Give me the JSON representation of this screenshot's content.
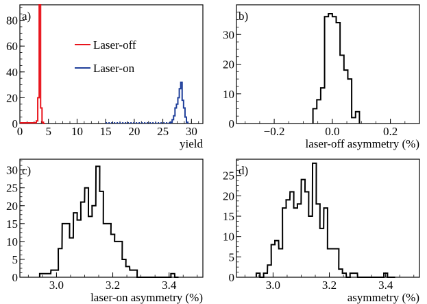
{
  "colors": {
    "laser_off": "#e8141c",
    "laser_on": "#1f3f9a",
    "plain": "#000000"
  },
  "chart_data": [
    {
      "panel": "a)",
      "type": "histogram",
      "xlabel": "yield",
      "ylabel": "",
      "xlim": [
        0,
        32
      ],
      "ylim": [
        0,
        92
      ],
      "xticks": [
        0,
        5,
        10,
        15,
        20,
        25,
        30
      ],
      "xtick_labels": [
        "0",
        "5",
        "10",
        "15",
        "20",
        "25",
        "30"
      ],
      "yticks": [
        0,
        20,
        40,
        60,
        80
      ],
      "ytick_labels": [
        "0",
        "20",
        "40",
        "60",
        "80"
      ],
      "legend": {
        "placement": "top-center",
        "entries": [
          "Laser-off",
          "Laser-on"
        ]
      },
      "series": [
        {
          "name": "Laser-off",
          "color_key": "laser_off",
          "bin_width": 0.25,
          "x": [
            3.0,
            3.25,
            3.5,
            3.75,
            4.0,
            4.25
          ],
          "values": [
            2,
            20,
            92,
            12,
            1,
            0
          ]
        },
        {
          "name": "Laser-on",
          "color_key": "laser_on",
          "bin_width": 0.25,
          "x": [
            26.5,
            26.75,
            27.0,
            27.25,
            27.5,
            27.75,
            28.0,
            28.25,
            28.5,
            28.75,
            29.0,
            29.25
          ],
          "values": [
            1,
            3,
            6,
            12,
            15,
            20,
            27,
            32,
            18,
            12,
            5,
            1
          ]
        }
      ]
    },
    {
      "panel": "b)",
      "type": "histogram",
      "xlabel": "laser-off asymmetry  (%)",
      "ylabel": "",
      "xlim": [
        -0.33,
        0.3
      ],
      "ylim": [
        0,
        40
      ],
      "xticks": [
        -0.2,
        0.0,
        0.2
      ],
      "xtick_labels": [
        "−0.2",
        "0.0",
        "0.2"
      ],
      "yticks": [
        0,
        10,
        20,
        30
      ],
      "ytick_labels": [
        "0",
        "10",
        "20",
        "30"
      ],
      "series": [
        {
          "name": "",
          "color_key": "plain",
          "bin_width": 0.0133,
          "x": [
            -0.06,
            -0.0467,
            -0.0333,
            -0.02,
            -0.0067,
            0.0067,
            0.02,
            0.0333,
            0.0467,
            0.06,
            0.0733,
            0.0867
          ],
          "values": [
            5,
            8,
            12,
            36,
            37,
            36,
            34,
            23,
            18,
            15,
            2,
            4
          ]
        }
      ]
    },
    {
      "panel": "c)",
      "type": "histogram",
      "xlabel": "laser-on asymmetry  (%)",
      "ylabel": "",
      "xlim": [
        2.87,
        3.52
      ],
      "ylim": [
        0,
        33
      ],
      "xticks": [
        3.0,
        3.2,
        3.4
      ],
      "xtick_labels": [
        "3.0",
        "3.2",
        "3.4"
      ],
      "yticks": [
        0,
        5,
        10,
        15,
        20,
        25,
        30
      ],
      "ytick_labels": [
        "0",
        "5",
        "10",
        "15",
        "20",
        "25",
        "30"
      ],
      "series": [
        {
          "name": "",
          "color_key": "plain",
          "bin_width": 0.0133,
          "x": [
            2.947,
            2.96,
            2.973,
            2.987,
            3.0,
            3.013,
            3.027,
            3.04,
            3.053,
            3.067,
            3.08,
            3.093,
            3.107,
            3.12,
            3.133,
            3.147,
            3.16,
            3.173,
            3.187,
            3.2,
            3.213,
            3.227,
            3.24,
            3.253,
            3.267,
            3.28,
            3.293,
            3.307,
            3.32,
            3.333,
            3.347,
            3.36,
            3.373,
            3.387,
            3.4,
            3.413,
            3.427
          ],
          "values": [
            1,
            1,
            1,
            2,
            2,
            8,
            15,
            15,
            11,
            18,
            16,
            21,
            25,
            17,
            20,
            31,
            24,
            15,
            15,
            12,
            10,
            10,
            5,
            3,
            2,
            2,
            0,
            0,
            0,
            0,
            0,
            0,
            0,
            0,
            0,
            1,
            0
          ]
        }
      ]
    },
    {
      "panel": "d)",
      "type": "histogram",
      "xlabel": "asymmetry  (%)",
      "ylabel": "",
      "xlim": [
        2.87,
        3.52
      ],
      "ylim": [
        0,
        29
      ],
      "xticks": [
        3.0,
        3.2,
        3.4
      ],
      "xtick_labels": [
        "3.0",
        "3.2",
        "3.4"
      ],
      "yticks": [
        0,
        5,
        10,
        15,
        20,
        25
      ],
      "ytick_labels": [
        "0",
        "5",
        "10",
        "15",
        "20",
        "25"
      ],
      "series": [
        {
          "name": "",
          "color_key": "plain",
          "bin_width": 0.0133,
          "x": [
            2.947,
            2.96,
            2.973,
            2.987,
            3.0,
            3.013,
            3.027,
            3.04,
            3.053,
            3.067,
            3.08,
            3.093,
            3.107,
            3.12,
            3.133,
            3.147,
            3.16,
            3.173,
            3.187,
            3.2,
            3.213,
            3.227,
            3.24,
            3.253,
            3.267,
            3.28,
            3.293,
            3.307,
            3.32,
            3.333,
            3.347,
            3.36,
            3.373,
            3.387,
            3.4,
            3.413,
            3.427
          ],
          "values": [
            1,
            0,
            1,
            3,
            8,
            9,
            7,
            17,
            19,
            21,
            17,
            18,
            24,
            21,
            15,
            28,
            18,
            12,
            17,
            7,
            7,
            7,
            2,
            1,
            0,
            1,
            1,
            0,
            0,
            0,
            0,
            0,
            0,
            0,
            1,
            0,
            0
          ]
        }
      ]
    }
  ]
}
